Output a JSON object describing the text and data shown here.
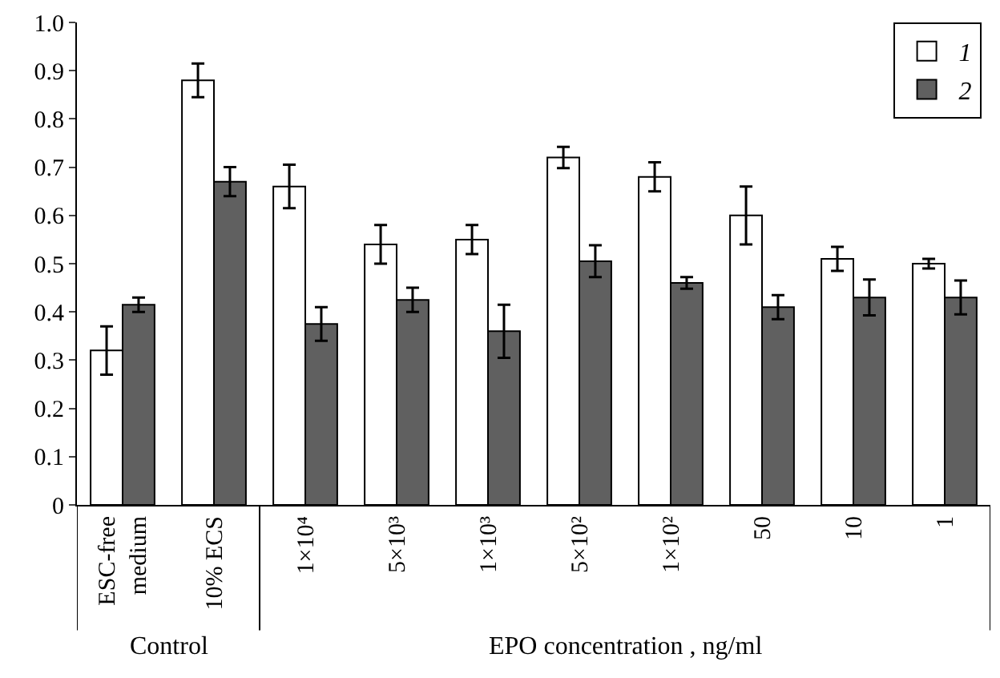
{
  "chart_data": {
    "type": "bar",
    "categories": [
      "ESC-free\nmedium",
      "10% ECS",
      "1×10⁴",
      "5×10³",
      "1×10³",
      "5×10²",
      "1×10²",
      "50",
      "10",
      "1"
    ],
    "series": [
      {
        "name": "1",
        "color": "#ffffff",
        "values": [
          0.32,
          0.88,
          0.66,
          0.54,
          0.55,
          0.72,
          0.68,
          0.6,
          0.51,
          0.5
        ],
        "errors": [
          0.05,
          0.035,
          0.045,
          0.04,
          0.03,
          0.022,
          0.03,
          0.06,
          0.025,
          0.01
        ]
      },
      {
        "name": "2",
        "color": "#606060",
        "values": [
          0.415,
          0.67,
          0.375,
          0.425,
          0.36,
          0.505,
          0.46,
          0.41,
          0.43,
          0.43
        ],
        "errors": [
          0.015,
          0.03,
          0.035,
          0.025,
          0.055,
          0.033,
          0.012,
          0.025,
          0.037,
          0.035
        ]
      }
    ],
    "ylim": [
      0,
      1
    ],
    "yticks": [
      0,
      0.1,
      0.2,
      0.3,
      0.4,
      0.5,
      0.6,
      0.7,
      0.8,
      0.9,
      {
        "value": 1,
        "label": "1.0"
      }
    ],
    "xlabel": "EPO concentration , ng/ml",
    "annotations": [
      "Control"
    ],
    "legend": "top right"
  }
}
